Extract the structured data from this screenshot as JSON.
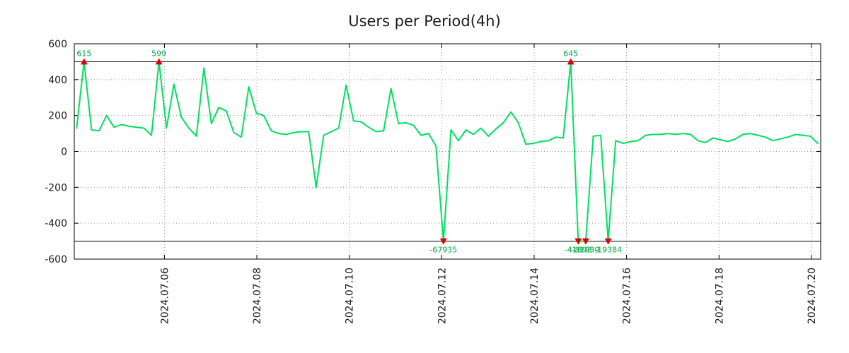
{
  "title": "Users per Period(4h)",
  "colors": {
    "line": "#00e060",
    "marker": "#dd0000",
    "annotation": "#00a844",
    "grid": "#9a9a9a",
    "axis": "#000000",
    "background": "#ffffff"
  },
  "chart_data": {
    "type": "line",
    "title": "Users per Period(4h)",
    "xlabel": "",
    "ylabel": "",
    "grid": "dotted",
    "legend": "none",
    "ylim": [
      -600,
      600
    ],
    "xlim": [
      4.05,
      20.2
    ],
    "x_start_day": 4.1,
    "x_step_days": 0.162,
    "clip_value": 500,
    "yticks": [
      {
        "value": -600,
        "label": "-600"
      },
      {
        "value": -400,
        "label": "-400"
      },
      {
        "value": -200,
        "label": "-200"
      },
      {
        "value": 0,
        "label": "0"
      },
      {
        "value": 200,
        "label": "200"
      },
      {
        "value": 400,
        "label": "400"
      },
      {
        "value": 600,
        "label": "600"
      }
    ],
    "xticks": [
      {
        "day": 6,
        "label": "2024.07.06"
      },
      {
        "day": 8,
        "label": "2024.07.08"
      },
      {
        "day": 10,
        "label": "2024.07.10"
      },
      {
        "day": 12,
        "label": "2024.07.12"
      },
      {
        "day": 14,
        "label": "2024.07.14"
      },
      {
        "day": 16,
        "label": "2024.07.16"
      },
      {
        "day": 18,
        "label": "2024.07.18"
      },
      {
        "day": 20,
        "label": "2024.07.20"
      }
    ],
    "values": [
      130,
      615,
      120,
      115,
      200,
      135,
      150,
      140,
      135,
      130,
      90,
      599,
      130,
      375,
      190,
      130,
      85,
      465,
      155,
      245,
      225,
      105,
      80,
      360,
      215,
      200,
      115,
      100,
      95,
      105,
      110,
      110,
      -200,
      90,
      110,
      130,
      370,
      170,
      165,
      135,
      110,
      115,
      350,
      155,
      160,
      145,
      90,
      100,
      30,
      -67935,
      120,
      60,
      120,
      95,
      130,
      85,
      125,
      160,
      220,
      160,
      40,
      45,
      55,
      60,
      80,
      75,
      645,
      -41893,
      -81939,
      85,
      90,
      -19384,
      60,
      45,
      55,
      60,
      90,
      95,
      95,
      100,
      95,
      100,
      95,
      60,
      50,
      75,
      65,
      55,
      70,
      95,
      100,
      90,
      80,
      60,
      70,
      80,
      95,
      90,
      85,
      45
    ],
    "annotations": [
      {
        "index": 1,
        "label": "615"
      },
      {
        "index": 11,
        "label": "599"
      },
      {
        "index": 66,
        "label": "645"
      },
      {
        "index": 49,
        "label": "-67935"
      },
      {
        "index": 67,
        "label": "-41893"
      },
      {
        "index": 68,
        "label": "-81939"
      },
      {
        "index": 71,
        "label": "-19384"
      }
    ]
  }
}
